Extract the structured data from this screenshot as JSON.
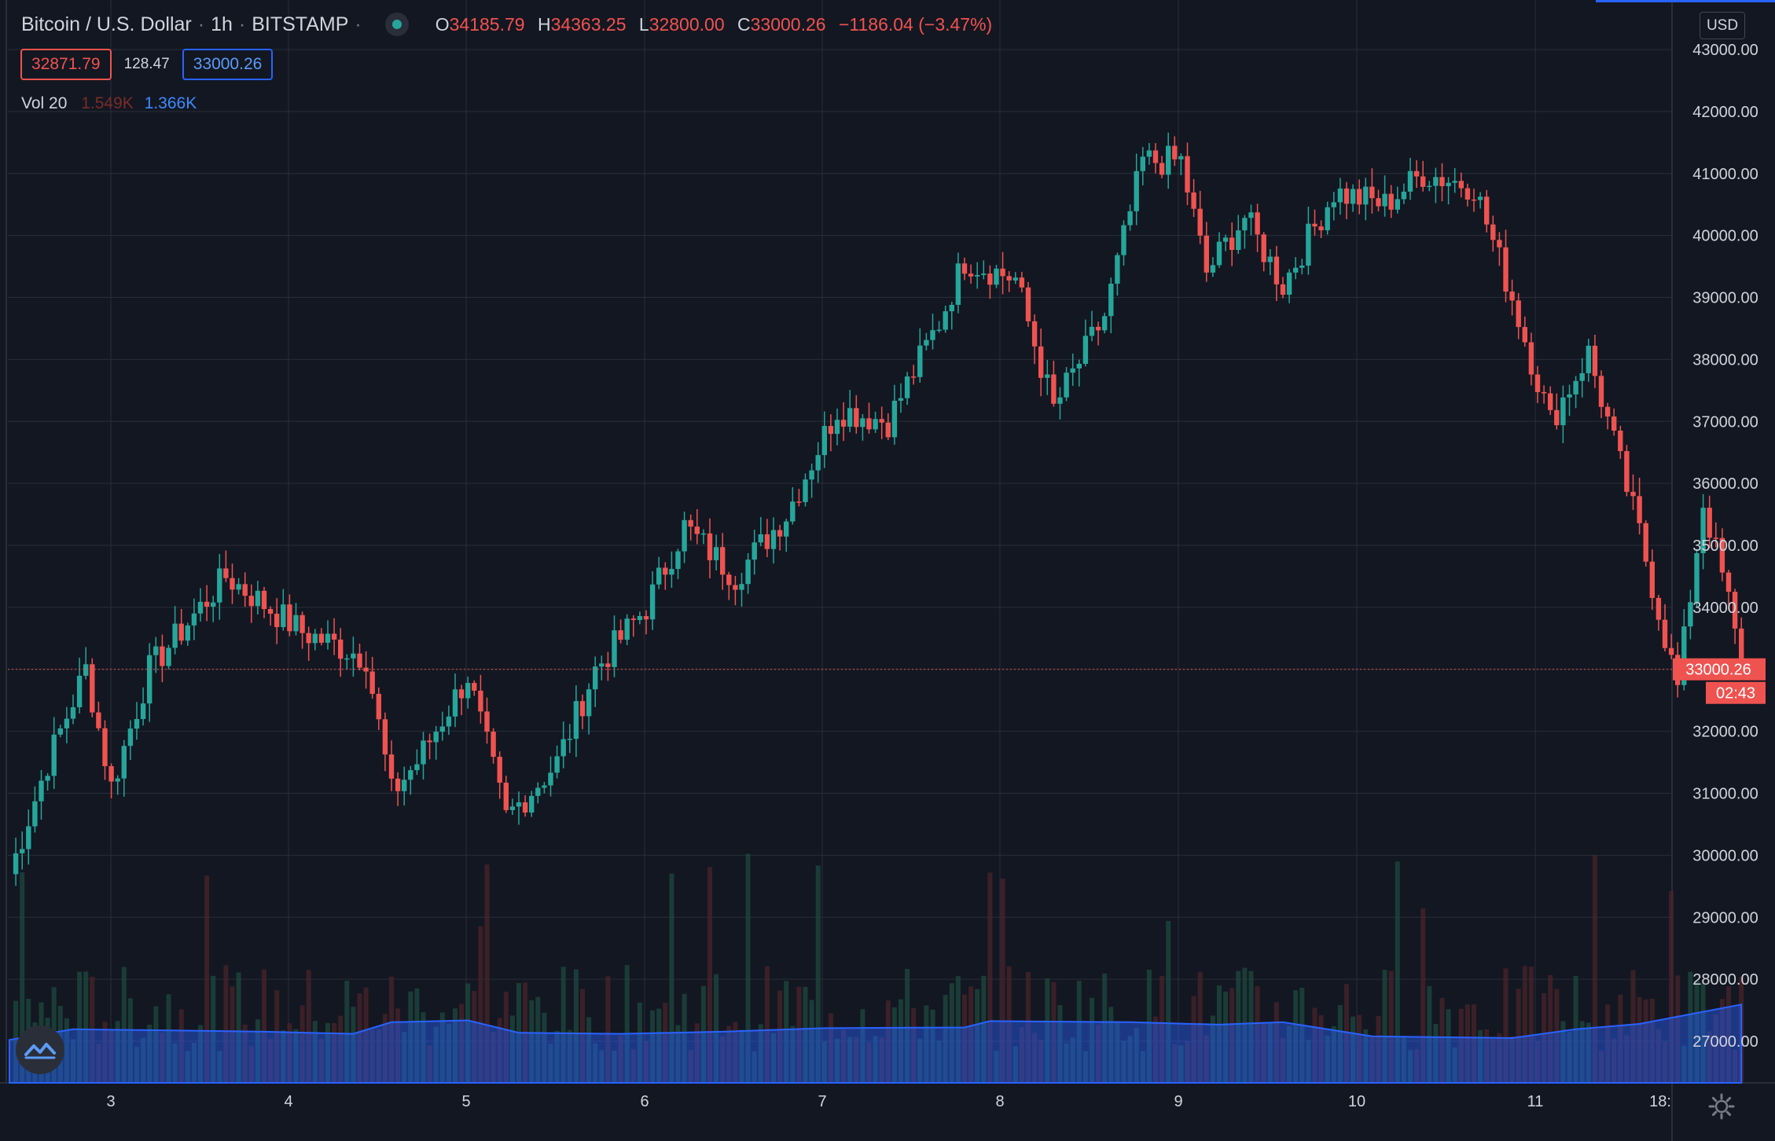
{
  "legend": {
    "symbol": "Bitcoin / U.S. Dollar",
    "interval": "1h",
    "exchange": "BITSTAMP",
    "sep": "·",
    "open_label": "O",
    "open": "34185.79",
    "high_label": "H",
    "high": "34363.25",
    "low_label": "L",
    "low": "32800.00",
    "close_label": "C",
    "close": "33000.26",
    "change": "−1186.04 (−3.47%)"
  },
  "quote": {
    "bid": "32871.79",
    "spread": "128.47",
    "ask": "33000.26"
  },
  "volume_legend": {
    "name": "Vol 20",
    "value_a": "1.549K",
    "value_b": "1.366K"
  },
  "currency_button": "USD",
  "last_price_label": "33000.26",
  "countdown_label": "02:43",
  "colors": {
    "background": "#131722",
    "up": "#26a69a",
    "down": "#ef5350",
    "grid": "#2a2e39",
    "volume_ma": "#2962ff"
  },
  "chart_data": {
    "type": "candlestick",
    "title": "Bitcoin / U.S. Dollar · 1h · BITSTAMP",
    "ylim": [
      26300,
      43500
    ],
    "y_ticks": [
      "27000.00",
      "28000.00",
      "29000.00",
      "30000.00",
      "31000.00",
      "32000.00",
      "33000.00",
      "34000.00",
      "35000.00",
      "36000.00",
      "37000.00",
      "38000.00",
      "39000.00",
      "40000.00",
      "41000.00",
      "42000.00",
      "43000.00"
    ],
    "x_ticks": [
      "3",
      "4",
      "5",
      "6",
      "7",
      "8",
      "9",
      "10",
      "11",
      "18:"
    ],
    "grid": true,
    "last_price": 33000.26,
    "key_points": [
      {
        "t": 0,
        "p": 29700
      },
      {
        "t": 6,
        "p": 31500
      },
      {
        "t": 12,
        "p": 33000
      },
      {
        "t": 16,
        "p": 31100
      },
      {
        "t": 22,
        "p": 33000
      },
      {
        "t": 34,
        "p": 34500
      },
      {
        "t": 46,
        "p": 33600
      },
      {
        "t": 56,
        "p": 33200
      },
      {
        "t": 60,
        "p": 31000
      },
      {
        "t": 64,
        "p": 31500
      },
      {
        "t": 72,
        "p": 32900
      },
      {
        "t": 78,
        "p": 30600
      },
      {
        "t": 86,
        "p": 31500
      },
      {
        "t": 92,
        "p": 33000
      },
      {
        "t": 100,
        "p": 34000
      },
      {
        "t": 106,
        "p": 35300
      },
      {
        "t": 114,
        "p": 34500
      },
      {
        "t": 122,
        "p": 35500
      },
      {
        "t": 130,
        "p": 37200
      },
      {
        "t": 138,
        "p": 37000
      },
      {
        "t": 146,
        "p": 38600
      },
      {
        "t": 150,
        "p": 39600
      },
      {
        "t": 158,
        "p": 39300
      },
      {
        "t": 164,
        "p": 37200
      },
      {
        "t": 172,
        "p": 38700
      },
      {
        "t": 178,
        "p": 41200
      },
      {
        "t": 184,
        "p": 41200
      },
      {
        "t": 188,
        "p": 39400
      },
      {
        "t": 194,
        "p": 40300
      },
      {
        "t": 200,
        "p": 39200
      },
      {
        "t": 208,
        "p": 40700
      },
      {
        "t": 216,
        "p": 40500
      },
      {
        "t": 222,
        "p": 41000
      },
      {
        "t": 230,
        "p": 40800
      },
      {
        "t": 236,
        "p": 39000
      },
      {
        "t": 242,
        "p": 37000
      },
      {
        "t": 248,
        "p": 38100
      },
      {
        "t": 256,
        "p": 35200
      },
      {
        "t": 262,
        "p": 32700
      },
      {
        "t": 266,
        "p": 35700
      },
      {
        "t": 270,
        "p": 34100
      },
      {
        "t": 272,
        "p": 33000
      }
    ],
    "volume_ma_points": [
      {
        "t": 0,
        "v": 0.55
      },
      {
        "t": 10,
        "v": 0.85
      },
      {
        "t": 24,
        "v": 0.82
      },
      {
        "t": 40,
        "v": 0.78
      },
      {
        "t": 54,
        "v": 0.72
      },
      {
        "t": 60,
        "v": 1.05
      },
      {
        "t": 72,
        "v": 1.1
      },
      {
        "t": 80,
        "v": 0.75
      },
      {
        "t": 96,
        "v": 0.72
      },
      {
        "t": 112,
        "v": 0.78
      },
      {
        "t": 128,
        "v": 0.88
      },
      {
        "t": 150,
        "v": 0.9
      },
      {
        "t": 154,
        "v": 1.08
      },
      {
        "t": 176,
        "v": 1.05
      },
      {
        "t": 190,
        "v": 0.98
      },
      {
        "t": 200,
        "v": 1.05
      },
      {
        "t": 214,
        "v": 0.65
      },
      {
        "t": 236,
        "v": 0.6
      },
      {
        "t": 246,
        "v": 0.85
      },
      {
        "t": 256,
        "v": 1.0
      },
      {
        "t": 272,
        "v": 1.55
      }
    ]
  }
}
